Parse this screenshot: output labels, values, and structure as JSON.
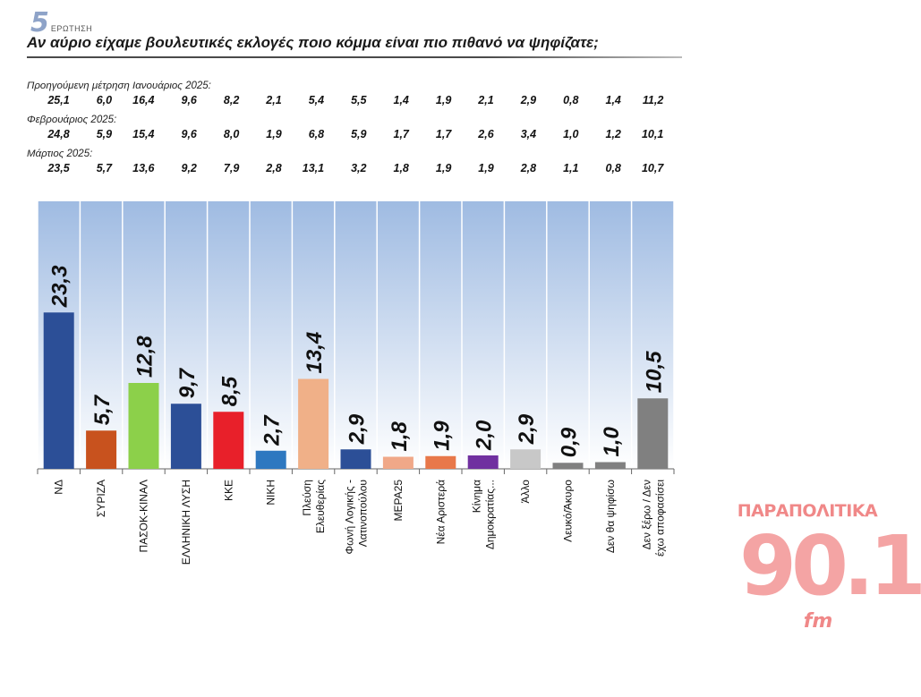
{
  "header": {
    "question_number": "5",
    "question_word": "ΕΡΩΤΗΣΗ",
    "question_text": "Αν αύριο είχαμε βουλευτικές εκλογές ποιο κόμμα είναι πιο πιθανό να ψηφίζατε;"
  },
  "previous_measurements": [
    {
      "label": "Προηγούμενη μέτρηση Ιανουάριος 2025:",
      "values": [
        "25,1",
        "6,0",
        "16,4",
        "9,6",
        "8,2",
        "2,1",
        "5,4",
        "5,5",
        "1,4",
        "1,9",
        "2,1",
        "2,9",
        "0,8",
        "1,4",
        "11,2"
      ]
    },
    {
      "label": "Φεβρουάριος 2025:",
      "values": [
        "24,8",
        "5,9",
        "15,4",
        "9,6",
        "8,0",
        "1,9",
        "6,8",
        "5,9",
        "1,7",
        "1,7",
        "2,6",
        "3,4",
        "1,0",
        "1,2",
        "10,1"
      ]
    },
    {
      "label": "Μάρτιος 2025:",
      "values": [
        "23,5",
        "5,7",
        "13,6",
        "9,2",
        "7,9",
        "2,8",
        "13,1",
        "3,2",
        "1,8",
        "1,9",
        "1,9",
        "2,8",
        "1,1",
        "0,8",
        "10,7"
      ]
    }
  ],
  "chart_data": {
    "type": "bar",
    "title": "",
    "xlabel": "",
    "ylabel": "",
    "ylim": [
      0,
      30
    ],
    "grid": false,
    "legend": "none",
    "background": "#b8cdea",
    "categories": [
      "ΝΔ",
      "ΣΥΡΙΖΑ",
      "ΠΑΣΟΚ-ΚΙΝΑΛ",
      "ΕΛΛΗΝΙΚΗ ΛΥΣΗ",
      "ΚΚΕ",
      "ΝΙΚΗ",
      "Πλεύση Ελευθερίας",
      "Φωνή Λογικής - Λατινοπούλου",
      "ΜΕΡΑ25",
      "Νέα Αριστερά",
      "Κίνημα Δημοκρατίας...",
      "Άλλο",
      "Λευκό/Άκυρο",
      "Δεν θα ψηφίσω",
      "Δεν ξέρω / Δεν έχω αποφασίσει"
    ],
    "category_lines": [
      [
        "ΝΔ"
      ],
      [
        "ΣΥΡΙΖΑ"
      ],
      [
        "ΠΑΣΟΚ-ΚΙΝΑΛ"
      ],
      [
        "ΕΛΛΗΝΙΚΗ ΛΥΣΗ"
      ],
      [
        "ΚΚΕ"
      ],
      [
        "ΝΙΚΗ"
      ],
      [
        "Πλεύση",
        "Ελευθερίας"
      ],
      [
        "Φωνή Λογικής -",
        "Λατινοπούλου"
      ],
      [
        "ΜΕΡΑ25"
      ],
      [
        "Νέα Αριστερά"
      ],
      [
        "Κίνημα",
        "Δημοκρατίας..."
      ],
      [
        "Άλλο"
      ],
      [
        "Λευκό/Άκυρο"
      ],
      [
        "Δεν θα ψηφίσω"
      ],
      [
        "Δεν ξέρω / Δεν",
        "έχω αποφασίσει"
      ]
    ],
    "values": [
      23.3,
      5.7,
      12.8,
      9.7,
      8.5,
      2.7,
      13.4,
      2.9,
      1.8,
      1.9,
      2.0,
      2.9,
      0.9,
      1.0,
      10.5
    ],
    "value_labels": [
      "23,3",
      "5,7",
      "12,8",
      "9,7",
      "8,5",
      "2,7",
      "13,4",
      "2,9",
      "1,8",
      "1,9",
      "2,0",
      "2,9",
      "0,9",
      "1,0",
      "10,5"
    ],
    "colors": [
      "#2c4f97",
      "#c8521e",
      "#8cd04a",
      "#2c4f97",
      "#e8202a",
      "#2e78c0",
      "#f0b088",
      "#2c4f97",
      "#f0a888",
      "#e8784a",
      "#7030a0",
      "#c8c8c8",
      "#808080",
      "#808080",
      "#808080"
    ]
  },
  "logo": {
    "top": "ΠΑΡΑΠΟΛΙΤΙΚΑ",
    "frequency": "90.1",
    "band": "fm"
  }
}
